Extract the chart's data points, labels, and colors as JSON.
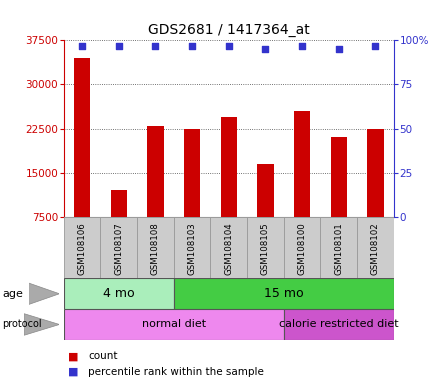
{
  "title": "GDS2681 / 1417364_at",
  "samples": [
    "GSM108106",
    "GSM108107",
    "GSM108108",
    "GSM108103",
    "GSM108104",
    "GSM108105",
    "GSM108100",
    "GSM108101",
    "GSM108102"
  ],
  "counts": [
    34500,
    12000,
    23000,
    22500,
    24500,
    16500,
    25500,
    21000,
    22500
  ],
  "percentile_ranks": [
    97,
    97,
    97,
    97,
    97,
    95,
    97,
    95,
    97
  ],
  "ymin": 7500,
  "ymax": 37500,
  "yticks": [
    7500,
    15000,
    22500,
    30000,
    37500
  ],
  "right_yticks": [
    0,
    25,
    50,
    75,
    100
  ],
  "bar_color": "#cc0000",
  "dot_color": "#3333cc",
  "grid_color": "#000000",
  "age_groups": [
    {
      "label": "4 mo",
      "start": 0,
      "end": 3,
      "color": "#aaeea a"
    },
    {
      "label": "15 mo",
      "start": 3,
      "end": 9,
      "color": "#44cc44"
    }
  ],
  "protocol_groups": [
    {
      "label": "normal diet",
      "start": 0,
      "end": 6,
      "color": "#ee88ee"
    },
    {
      "label": "calorie restricted diet",
      "start": 6,
      "end": 9,
      "color": "#cc55cc"
    }
  ],
  "legend_count_label": "count",
  "legend_percentile_label": "percentile rank within the sample",
  "title_fontsize": 10,
  "axis_label_color_left": "#cc0000",
  "axis_label_color_right": "#3333cc",
  "label_box_color": "#cccccc",
  "label_box_edge": "#888888",
  "age_light_green": "#aaeebb",
  "age_dark_green": "#44cc44",
  "protocol_light_pink": "#ee88ee",
  "protocol_dark_pink": "#cc55cc"
}
